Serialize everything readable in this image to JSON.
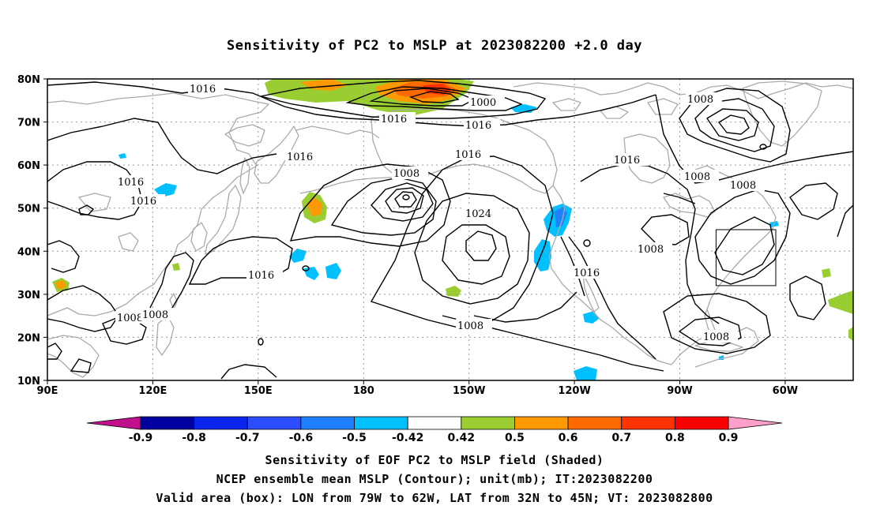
{
  "title": "Sensitivity of PC2 to MSLP at 2023082200 +2.0 day",
  "map": {
    "lat_ticks": [
      "80N",
      "70N",
      "60N",
      "50N",
      "40N",
      "30N",
      "20N",
      "10N"
    ],
    "lon_ticks": [
      "90E",
      "120E",
      "150E",
      "180",
      "150W",
      "120W",
      "90W",
      "60W"
    ],
    "contour_labels": [
      {
        "id": "c1",
        "text": "1016"
      },
      {
        "id": "c2",
        "text": "1016"
      },
      {
        "id": "c3",
        "text": "1000"
      },
      {
        "id": "c4",
        "text": "1016"
      },
      {
        "id": "c5",
        "text": "1008"
      },
      {
        "id": "c6",
        "text": "1016"
      },
      {
        "id": "c7",
        "text": "1016"
      },
      {
        "id": "c8",
        "text": "1008"
      },
      {
        "id": "c9",
        "text": "1016"
      },
      {
        "id": "c10",
        "text": "1016"
      },
      {
        "id": "c11",
        "text": "1016"
      },
      {
        "id": "c12",
        "text": "1008"
      },
      {
        "id": "c13",
        "text": "1024"
      },
      {
        "id": "c14",
        "text": "1008"
      },
      {
        "id": "c15",
        "text": "1008"
      },
      {
        "id": "c16",
        "text": "1016"
      },
      {
        "id": "c17",
        "text": "1016"
      },
      {
        "id": "c18",
        "text": "1008"
      },
      {
        "id": "c19",
        "text": "1008"
      },
      {
        "id": "c20",
        "text": "1008"
      },
      {
        "id": "c21",
        "text": "1008"
      }
    ],
    "valid_box": {
      "lon_w": -79,
      "lon_e": -62,
      "lat_s": 32,
      "lat_n": 45
    }
  },
  "colorbar": {
    "labels": [
      "-0.9",
      "-0.8",
      "-0.7",
      "-0.6",
      "-0.5",
      "-0.42",
      "0.42",
      "0.5",
      "0.6",
      "0.7",
      "0.8",
      "0.9"
    ],
    "colors": [
      "#0000a0",
      "#0a24f0",
      "#2a4dff",
      "#1e82ff",
      "#00c0ff",
      "#ffffff",
      "#9acd32",
      "#ff9900",
      "#ff6a00",
      "#ff3300",
      "#ff0000"
    ],
    "low_end_color": "#c0108c",
    "high_end_color": "#ff9ec8"
  },
  "footer": {
    "line1": "Sensitivity of EOF PC2 to MSLP field (Shaded)",
    "line2": "NCEP ensemble mean MSLP (Contour); unit(mb); IT:2023082200",
    "line3": "Valid area (box): LON from 79W to 62W, LAT from 32N to 45N; VT: 2023082800"
  }
}
